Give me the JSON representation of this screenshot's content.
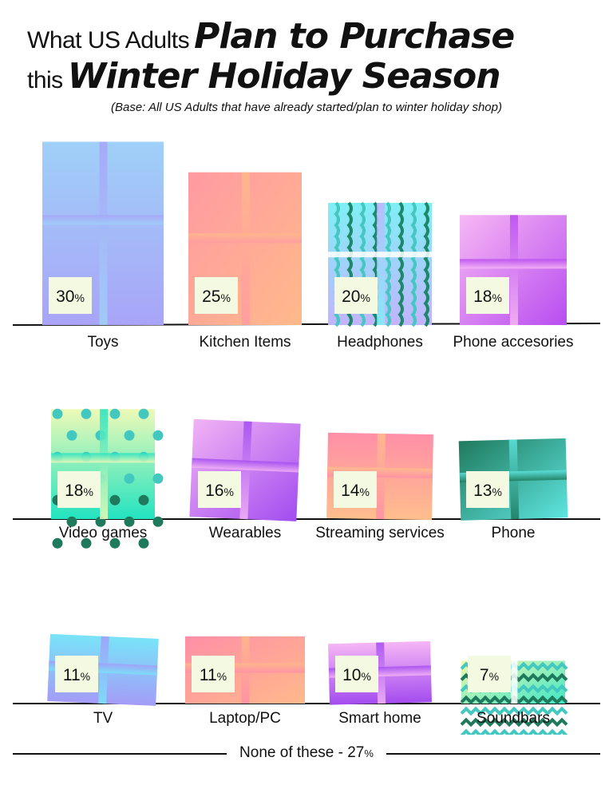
{
  "title": {
    "line1_small": "What US Adults",
    "line1_big": "Plan to Purchase",
    "line2_small": "this",
    "line2_big": "Winter Holiday Season"
  },
  "subtitle": "(Base: All US Adults that have already started/plan to winter holiday shop)",
  "footer": {
    "label": "None of these - 27",
    "unit": "%"
  },
  "chart_data": {
    "type": "bar",
    "title": "What US Adults Plan to Purchase this Winter Holiday Season",
    "subtitle": "(Base: All US Adults that have already started/plan to winter holiday shop)",
    "unit": "%",
    "categories": [
      "Toys",
      "Kitchen Items",
      "Headphones",
      "Phone accesories",
      "Video games",
      "Wearables",
      "Streaming services",
      "Phone",
      "TV",
      "Laptop/PC",
      "Smart home",
      "Soundbars"
    ],
    "values": [
      30,
      25,
      20,
      18,
      18,
      16,
      14,
      13,
      11,
      11,
      10,
      7
    ],
    "series": [
      {
        "values": [
          30,
          25,
          20,
          18,
          18,
          16,
          14,
          13,
          11,
          11,
          10,
          7
        ]
      }
    ],
    "annotations": [
      "None of these - 27%"
    ],
    "colors": {
      "toys": [
        "#9fd0f8",
        "#a9a4f8"
      ],
      "kitchen": [
        "#ff9aa2",
        "#ffb98a"
      ],
      "headphones": [
        "#7ff0f5",
        "#c2b4ff"
      ],
      "phone_accessories": [
        "#f7b7f4",
        "#b84df0"
      ],
      "video_games": [
        "#eefab7",
        "#22e3c0"
      ],
      "wearables": [
        "#f2b3f4",
        "#a24cf0"
      ],
      "streaming": [
        "#ff8fa7",
        "#ffbe8c"
      ],
      "phone": [
        "#1f7a5d",
        "#5ee5e0"
      ],
      "tv": [
        "#78e4f8",
        "#a49cf8"
      ],
      "laptop": [
        "#ff8fa7",
        "#ffb98a"
      ],
      "smart_home": [
        "#f5b6f5",
        "#a44cf0"
      ],
      "soundbars": [
        "#f0fab0",
        "#3de6c6"
      ]
    }
  }
}
